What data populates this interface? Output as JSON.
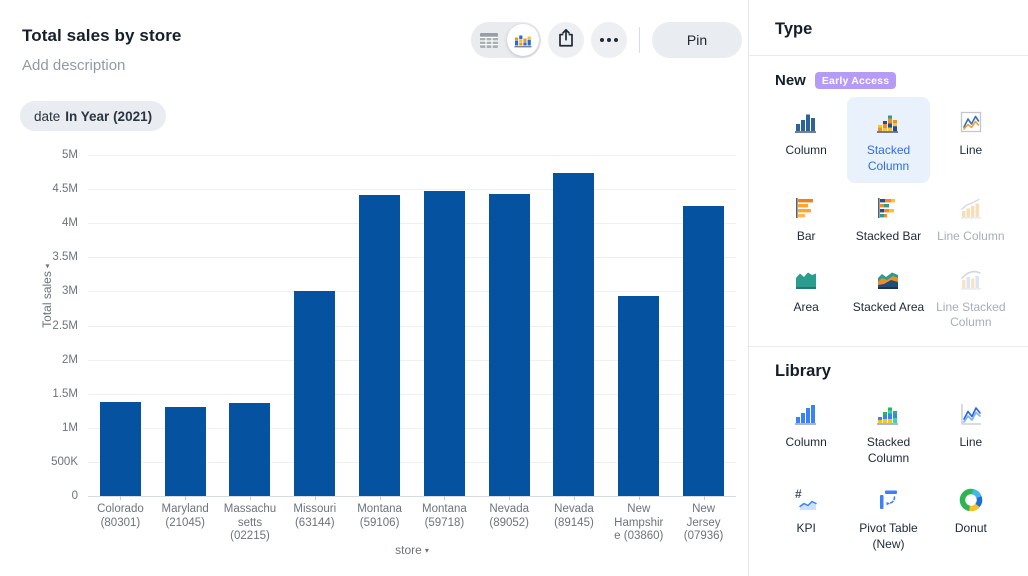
{
  "header": {
    "title": "Total sales by store",
    "description_placeholder": "Add description",
    "filter_chip": {
      "field": "date",
      "condition": "In Year (2021)"
    }
  },
  "toolbar": {
    "view_toggle": {
      "options": [
        "table-view",
        "chart-view"
      ],
      "selected": "chart-view"
    },
    "share_icon": "share-icon",
    "more_icon": "more-options-icon",
    "pin_label": "Pin"
  },
  "chart_data": {
    "type": "bar",
    "title": "Total sales by store",
    "xlabel": "store",
    "ylabel": "Total sales",
    "axis_arrow": "▾",
    "categories": [
      "Colorado (80301)",
      "Maryland (21045)",
      "Massachusetts (02215)",
      "Missouri (63144)",
      "Montana (59106)",
      "Montana (59718)",
      "Nevada (89052)",
      "Nevada (89145)",
      "New Hampshire (03860)",
      "New Jersey (07936)"
    ],
    "tick_lines": [
      "Colorado\n(80301)",
      "Maryland\n(21045)",
      "Massachu\nsetts\n(02215)",
      "Missouri\n(63144)",
      "Montana\n(59106)",
      "Montana\n(59718)",
      "Nevada\n(89052)",
      "Nevada\n(89145)",
      "New\nHampshir\ne (03860)",
      "New\nJersey\n(07936)"
    ],
    "values": [
      1380000,
      1300000,
      1360000,
      3010000,
      4410000,
      4470000,
      4430000,
      4730000,
      2940000,
      4250000
    ],
    "ylim": [
      0,
      5000000
    ],
    "y_ticks": [
      "0",
      "500K",
      "1M",
      "1.5M",
      "2M",
      "2.5M",
      "3M",
      "3.5M",
      "4M",
      "4.5M",
      "5M"
    ],
    "grid": true,
    "legend": false,
    "bar_color": "#0452a0"
  },
  "sidebar": {
    "title": "Type",
    "sections": [
      {
        "heading": "New",
        "badge": "Early Access",
        "items": [
          {
            "label": "Column",
            "icon": "column-chart-icon",
            "state": "default"
          },
          {
            "label": "Stacked Column",
            "icon": "stacked-column-chart-icon",
            "state": "selected"
          },
          {
            "label": "Line",
            "icon": "line-chart-icon",
            "state": "default"
          },
          {
            "label": "Bar",
            "icon": "bar-chart-icon",
            "state": "default"
          },
          {
            "label": "Stacked Bar",
            "icon": "stacked-bar-chart-icon",
            "state": "default"
          },
          {
            "label": "Line Column",
            "icon": "line-column-chart-icon",
            "state": "disabled"
          },
          {
            "label": "Area",
            "icon": "area-chart-icon",
            "state": "default"
          },
          {
            "label": "Stacked Area",
            "icon": "stacked-area-chart-icon",
            "state": "default"
          },
          {
            "label": "Line Stacked Column",
            "icon": "line-stacked-column-chart-icon",
            "state": "disabled"
          }
        ]
      },
      {
        "heading": "Library",
        "items": [
          {
            "label": "Column",
            "icon": "library-column-chart-icon",
            "state": "default"
          },
          {
            "label": "Stacked Column",
            "icon": "library-stacked-column-chart-icon",
            "state": "default"
          },
          {
            "label": "Line",
            "icon": "library-line-chart-icon",
            "state": "default"
          },
          {
            "label": "KPI",
            "icon": "kpi-chart-icon",
            "state": "default"
          },
          {
            "label": "Pivot Table (New)",
            "icon": "pivot-table-icon",
            "state": "default"
          },
          {
            "label": "Donut",
            "icon": "donut-chart-icon",
            "state": "default"
          }
        ]
      }
    ]
  },
  "colors": {
    "bar_blue": "#0452a0",
    "accent_blue": "#2e6fe0",
    "selected_tile_bg": "#e9f1fd",
    "badge_purple": "#b59bf3",
    "gridline": "#eef0f4",
    "axis_text": "#6d737b"
  }
}
